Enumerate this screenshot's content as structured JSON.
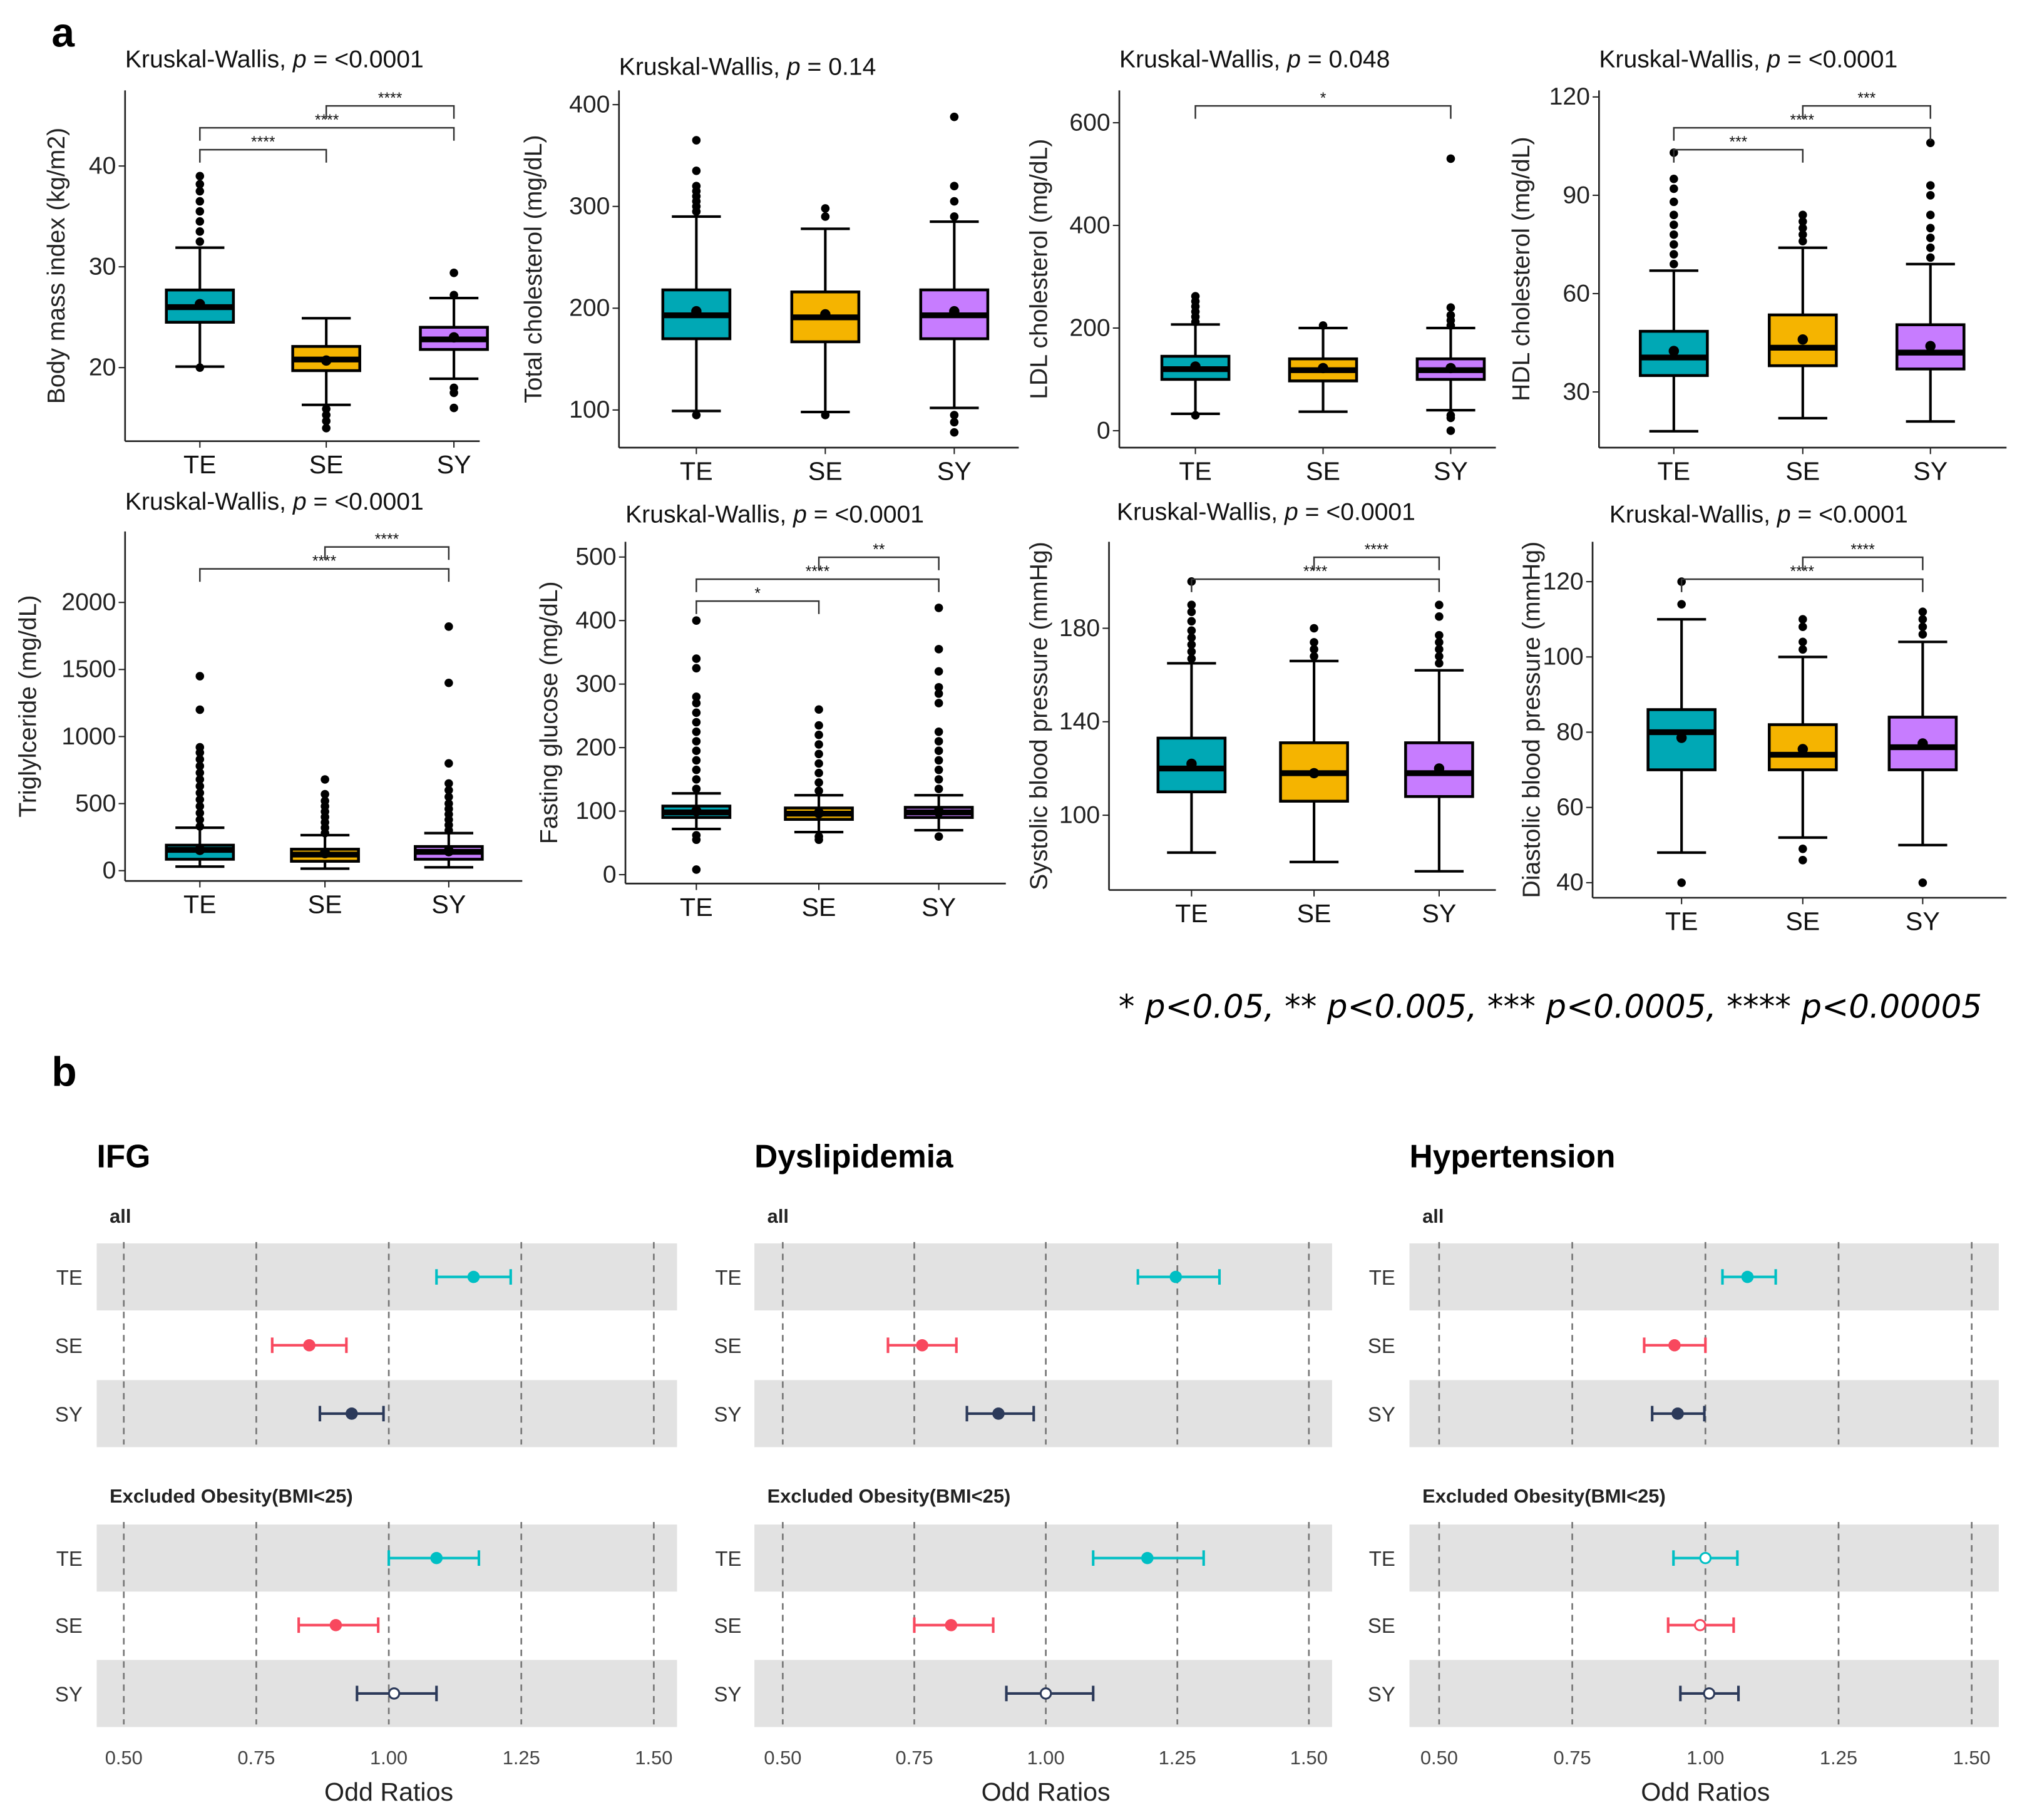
{
  "panel_labels": {
    "a": "a",
    "b": "b"
  },
  "footnote": "* p<0.05, ** p<0.005, *** p<0.0005, **** p<0.00005",
  "box_colors": {
    "TE": "#00A8B5",
    "SE": "#F5B400",
    "SY": "#C77CFF"
  },
  "chart_data": [
    {
      "type": "box",
      "title_prefix": "Kruskal-Wallis, ",
      "title_p": "p",
      "title_suffix": " = <0.0001",
      "ylabel": "Body mass index (kg/m2)",
      "ylim": [
        12.7,
        47.5
      ],
      "yticks": [
        20,
        30,
        40
      ],
      "categories": [
        "TE",
        "SE",
        "SY"
      ],
      "boxes": [
        {
          "q1": 24.5,
          "median": 26,
          "q3": 27.7,
          "whisker_low": 20.1,
          "whisker_high": 31.9,
          "mean": 26.3,
          "outliers": [
            20,
            32.5,
            33.5,
            34.5,
            35.5,
            36.5,
            37.5,
            38.2,
            39
          ]
        },
        {
          "q1": 19.7,
          "median": 20.8,
          "q3": 22.1,
          "whisker_low": 16.3,
          "whisker_high": 24.9,
          "mean": 20.7,
          "outliers": [
            14,
            14.7,
            15.3,
            15.9
          ]
        },
        {
          "q1": 21.8,
          "median": 22.8,
          "q3": 24,
          "whisker_low": 18.9,
          "whisker_high": 26.9,
          "mean": 23,
          "outliers": [
            16,
            17.5,
            18,
            27.2,
            29.4
          ]
        }
      ],
      "comparisons": [
        {
          "from": "TE",
          "to": "SE",
          "label": "****"
        },
        {
          "from": "TE",
          "to": "SY",
          "label": "****"
        },
        {
          "from": "SE",
          "to": "SY",
          "label": "****"
        }
      ]
    },
    {
      "type": "box",
      "title_prefix": "Kruskal-Wallis, ",
      "title_p": "p",
      "title_suffix": " = 0.14",
      "ylabel": "Total cholesterol (mg/dL)",
      "ylim": [
        63,
        414
      ],
      "yticks": [
        100,
        200,
        300,
        400
      ],
      "categories": [
        "TE",
        "SE",
        "SY"
      ],
      "boxes": [
        {
          "q1": 170,
          "median": 193,
          "q3": 218,
          "whisker_low": 99,
          "whisker_high": 290,
          "mean": 197,
          "outliers": [
            95,
            295,
            300,
            305,
            310,
            315,
            320,
            335,
            365
          ]
        },
        {
          "q1": 167,
          "median": 191,
          "q3": 216,
          "whisker_low": 98,
          "whisker_high": 278,
          "mean": 194,
          "outliers": [
            95,
            290,
            298
          ]
        },
        {
          "q1": 170,
          "median": 193,
          "q3": 218,
          "whisker_low": 102,
          "whisker_high": 285,
          "mean": 197,
          "outliers": [
            78,
            88,
            95,
            290,
            305,
            320,
            388
          ]
        }
      ],
      "comparisons": []
    },
    {
      "type": "box",
      "title_prefix": "Kruskal-Wallis, ",
      "title_p": "p",
      "title_suffix": " = 0.048",
      "ylabel": "LDL cholesterol (mg/dL)",
      "ylim": [
        -33,
        663
      ],
      "yticks": [
        0,
        200,
        400,
        600
      ],
      "categories": [
        "TE",
        "SE",
        "SY"
      ],
      "boxes": [
        {
          "q1": 100,
          "median": 120,
          "q3": 145,
          "whisker_low": 33,
          "whisker_high": 207,
          "mean": 125,
          "outliers": [
            30,
            212,
            222,
            232,
            242,
            252,
            262
          ]
        },
        {
          "q1": 97,
          "median": 118,
          "q3": 140,
          "whisker_low": 37,
          "whisker_high": 200,
          "mean": 122,
          "outliers": [
            205
          ]
        },
        {
          "q1": 100,
          "median": 118,
          "q3": 140,
          "whisker_low": 40,
          "whisker_high": 200,
          "mean": 122,
          "outliers": [
            0,
            25,
            30,
            205,
            215,
            225,
            240,
            530
          ]
        }
      ],
      "comparisons": [
        {
          "from": "TE",
          "to": "SY",
          "label": "*"
        }
      ]
    },
    {
      "type": "box",
      "title_prefix": "Kruskal-Wallis, ",
      "title_p": "p",
      "title_suffix": " = <0.0001",
      "ylabel": "HDL cholesterol (mg/dL)",
      "ylim": [
        13,
        122
      ],
      "yticks": [
        30,
        60,
        90,
        120
      ],
      "categories": [
        "TE",
        "SE",
        "SY"
      ],
      "boxes": [
        {
          "q1": 35,
          "median": 40.5,
          "q3": 48.5,
          "whisker_low": 18,
          "whisker_high": 67,
          "mean": 42.5,
          "outliers": [
            69,
            72,
            75,
            78,
            81,
            84,
            88,
            92,
            95,
            103
          ]
        },
        {
          "q1": 38,
          "median": 43.5,
          "q3": 53.5,
          "whisker_low": 22,
          "whisker_high": 74,
          "mean": 46,
          "outliers": [
            76,
            78,
            80,
            82,
            84
          ]
        },
        {
          "q1": 37,
          "median": 42,
          "q3": 50.5,
          "whisker_low": 21,
          "whisker_high": 69,
          "mean": 44,
          "outliers": [
            71,
            74,
            77,
            80,
            84,
            90,
            93,
            106
          ]
        }
      ],
      "comparisons": [
        {
          "from": "TE",
          "to": "SE",
          "label": "***"
        },
        {
          "from": "TE",
          "to": "SY",
          "label": "****"
        },
        {
          "from": "SE",
          "to": "SY",
          "label": "***"
        }
      ]
    },
    {
      "type": "box",
      "title_prefix": "Kruskal-Wallis, ",
      "title_p": "p",
      "title_suffix": " = <0.0001",
      "ylabel": "Triglylceride (mg/dL)",
      "ylim": [
        -77,
        2529
      ],
      "yticks": [
        0,
        500,
        1000,
        1500,
        2000
      ],
      "categories": [
        "TE",
        "SE",
        "SY"
      ],
      "boxes": [
        {
          "q1": 85,
          "median": 155,
          "q3": 190,
          "whisker_low": 30,
          "whisker_high": 320,
          "mean": 155,
          "outliers": [
            330,
            380,
            430,
            480,
            530,
            580,
            630,
            680,
            730,
            780,
            830,
            880,
            920,
            1200,
            1450
          ]
        },
        {
          "q1": 70,
          "median": 120,
          "q3": 160,
          "whisker_low": 15,
          "whisker_high": 265,
          "mean": 130,
          "outliers": [
            280,
            320,
            360,
            400,
            440,
            480,
            520,
            570,
            680
          ]
        },
        {
          "q1": 85,
          "median": 140,
          "q3": 180,
          "whisker_low": 25,
          "whisker_high": 280,
          "mean": 145,
          "outliers": [
            300,
            340,
            380,
            420,
            460,
            500,
            550,
            600,
            650,
            800,
            1400,
            1820
          ]
        }
      ],
      "comparisons": [
        {
          "from": "TE",
          "to": "SY",
          "label": "****"
        },
        {
          "from": "SE",
          "to": "SY",
          "label": "****"
        }
      ]
    },
    {
      "type": "box",
      "title_prefix": "Kruskal-Wallis, ",
      "title_p": "p",
      "title_suffix": " = <0.0001",
      "ylabel": "Fasting glucose (mg/dL)",
      "ylim": [
        -14,
        524
      ],
      "yticks": [
        0,
        100,
        200,
        300,
        400,
        500
      ],
      "categories": [
        "TE",
        "SE",
        "SY"
      ],
      "boxes": [
        {
          "q1": 90,
          "median": 98,
          "q3": 108,
          "whisker_low": 72,
          "whisker_high": 128,
          "mean": 100,
          "outliers": [
            8,
            55,
            62,
            135,
            150,
            165,
            180,
            195,
            210,
            225,
            240,
            255,
            270,
            280,
            325,
            340,
            400
          ]
        },
        {
          "q1": 87,
          "median": 96,
          "q3": 105,
          "whisker_low": 67,
          "whisker_high": 125,
          "mean": 97,
          "outliers": [
            55,
            60,
            132,
            145,
            160,
            175,
            190,
            205,
            220,
            235,
            260
          ]
        },
        {
          "q1": 90,
          "median": 98,
          "q3": 106,
          "whisker_low": 70,
          "whisker_high": 125,
          "mean": 99,
          "outliers": [
            60,
            135,
            150,
            165,
            180,
            195,
            210,
            225,
            270,
            285,
            295,
            320,
            355,
            420
          ]
        }
      ],
      "comparisons": [
        {
          "from": "TE",
          "to": "SE",
          "label": "*"
        },
        {
          "from": "TE",
          "to": "SY",
          "label": "****"
        },
        {
          "from": "SE",
          "to": "SY",
          "label": "**"
        }
      ]
    },
    {
      "type": "box",
      "title_prefix": "Kruskal-Wallis, ",
      "title_p": "p",
      "title_suffix": " = <0.0001",
      "ylabel": "Systolic blood pressure (mmHg)",
      "ylim": [
        68,
        217
      ],
      "yticks": [
        100,
        140,
        180
      ],
      "categories": [
        "TE",
        "SE",
        "SY"
      ],
      "boxes": [
        {
          "q1": 110,
          "median": 120,
          "q3": 133,
          "whisker_low": 84,
          "whisker_high": 165,
          "mean": 122,
          "outliers": [
            167,
            170,
            173,
            176,
            179,
            183,
            187,
            190,
            200
          ]
        },
        {
          "q1": 106,
          "median": 118,
          "q3": 131,
          "whisker_low": 80,
          "whisker_high": 166,
          "mean": 118,
          "outliers": [
            168,
            171,
            174,
            180
          ]
        },
        {
          "q1": 108,
          "median": 118,
          "q3": 131,
          "whisker_low": 76,
          "whisker_high": 162,
          "mean": 120,
          "outliers": [
            165,
            168,
            171,
            174,
            177,
            185,
            190
          ]
        }
      ],
      "comparisons": [
        {
          "from": "TE",
          "to": "SY",
          "label": "****"
        },
        {
          "from": "SE",
          "to": "SY",
          "label": "****"
        }
      ]
    },
    {
      "type": "box",
      "title_prefix": "Kruskal-Wallis, ",
      "title_p": "p",
      "title_suffix": " = <0.0001",
      "ylabel": "Diastolic blood pressure (mmHg)",
      "ylim": [
        36,
        130.6
      ],
      "yticks": [
        40,
        60,
        80,
        100,
        120
      ],
      "categories": [
        "TE",
        "SE",
        "SY"
      ],
      "boxes": [
        {
          "q1": 70,
          "median": 80,
          "q3": 86,
          "whisker_low": 48,
          "whisker_high": 110,
          "mean": 78.5,
          "outliers": [
            40,
            114,
            120
          ]
        },
        {
          "q1": 70,
          "median": 74,
          "q3": 82,
          "whisker_low": 52,
          "whisker_high": 100,
          "mean": 75.5,
          "outliers": [
            46,
            49,
            102,
            104,
            108,
            110
          ]
        },
        {
          "q1": 70,
          "median": 76,
          "q3": 84,
          "whisker_low": 50,
          "whisker_high": 104,
          "mean": 77,
          "outliers": [
            40,
            106,
            108,
            110,
            112
          ]
        }
      ],
      "comparisons": [
        {
          "from": "TE",
          "to": "SY",
          "label": "****"
        },
        {
          "from": "SE",
          "to": "SY",
          "label": "****"
        }
      ]
    },
    {
      "type": "forest",
      "title": "IFG",
      "xlabel": "Odd Ratios",
      "xlim": [
        0.5,
        1.5
      ],
      "xticks": [
        0.5,
        0.75,
        1.0,
        1.25,
        1.5
      ],
      "xtick_labels": [
        "0.50",
        "0.75",
        "1.00",
        "1.25",
        "1.50"
      ],
      "groups": [
        {
          "label": "all",
          "rows": [
            {
              "category": "TE",
              "or": 1.16,
              "lo": 1.09,
              "hi": 1.23,
              "significant": true,
              "color": "#00BFC4"
            },
            {
              "category": "SE",
              "or": 0.85,
              "lo": 0.78,
              "hi": 0.92,
              "significant": true,
              "color": "#F8485E"
            },
            {
              "category": "SY",
              "or": 0.93,
              "lo": 0.87,
              "hi": 0.99,
              "significant": true,
              "color": "#2C3A5A"
            }
          ]
        },
        {
          "label": "Excluded Obesity(BMI<25)",
          "rows": [
            {
              "category": "TE",
              "or": 1.09,
              "lo": 1.0,
              "hi": 1.17,
              "significant": true,
              "color": "#00BFC4"
            },
            {
              "category": "SE",
              "or": 0.9,
              "lo": 0.83,
              "hi": 0.98,
              "significant": true,
              "color": "#F8485E"
            },
            {
              "category": "SY",
              "or": 1.01,
              "lo": 0.94,
              "hi": 1.09,
              "significant": false,
              "color": "#2C3A5A"
            }
          ]
        }
      ]
    },
    {
      "type": "forest",
      "title": "Dyslipidemia",
      "xlabel": "Odd Ratios",
      "xlim": [
        0.5,
        1.5
      ],
      "xticks": [
        0.5,
        0.75,
        1.0,
        1.25,
        1.5
      ],
      "xtick_labels": [
        "0.50",
        "0.75",
        "1.00",
        "1.25",
        "1.50"
      ],
      "groups": [
        {
          "label": "all",
          "rows": [
            {
              "category": "TE",
              "or": 1.247,
              "lo": 1.175,
              "hi": 1.33,
              "significant": true,
              "color": "#00BFC4"
            },
            {
              "category": "SE",
              "or": 0.765,
              "lo": 0.7,
              "hi": 0.83,
              "significant": true,
              "color": "#F8485E"
            },
            {
              "category": "SY",
              "or": 0.91,
              "lo": 0.85,
              "hi": 0.977,
              "significant": true,
              "color": "#2C3A5A"
            }
          ]
        },
        {
          "label": "Excluded Obesity(BMI<25)",
          "rows": [
            {
              "category": "TE",
              "or": 1.193,
              "lo": 1.09,
              "hi": 1.3,
              "significant": true,
              "color": "#00BFC4"
            },
            {
              "category": "SE",
              "or": 0.82,
              "lo": 0.75,
              "hi": 0.9,
              "significant": true,
              "color": "#F8485E"
            },
            {
              "category": "SY",
              "or": 1.0,
              "lo": 0.925,
              "hi": 1.09,
              "significant": false,
              "color": "#2C3A5A"
            }
          ]
        }
      ]
    },
    {
      "type": "forest",
      "title": "Hypertension",
      "xlabel": "Odd Ratios",
      "xlim": [
        0.5,
        1.5
      ],
      "xticks": [
        0.5,
        0.75,
        1.0,
        1.25,
        1.5
      ],
      "xtick_labels": [
        "0.50",
        "0.75",
        "1.00",
        "1.25",
        "1.50"
      ],
      "groups": [
        {
          "label": "all",
          "rows": [
            {
              "category": "TE",
              "or": 1.079,
              "lo": 1.032,
              "hi": 1.132,
              "significant": true,
              "color": "#00BFC4"
            },
            {
              "category": "SE",
              "or": 0.942,
              "lo": 0.885,
              "hi": 1.0,
              "significant": true,
              "color": "#F8485E"
            },
            {
              "category": "SY",
              "or": 0.948,
              "lo": 0.9,
              "hi": 0.998,
              "significant": true,
              "color": "#2C3A5A"
            }
          ]
        },
        {
          "label": "Excluded Obesity(BMI<25)",
          "rows": [
            {
              "category": "TE",
              "or": 1.0,
              "lo": 0.94,
              "hi": 1.06,
              "significant": false,
              "color": "#00BFC4"
            },
            {
              "category": "SE",
              "or": 0.99,
              "lo": 0.93,
              "hi": 1.053,
              "significant": false,
              "color": "#F8485E"
            },
            {
              "category": "SY",
              "or": 1.007,
              "lo": 0.953,
              "hi": 1.062,
              "significant": false,
              "color": "#2C3A5A"
            }
          ]
        }
      ]
    }
  ]
}
